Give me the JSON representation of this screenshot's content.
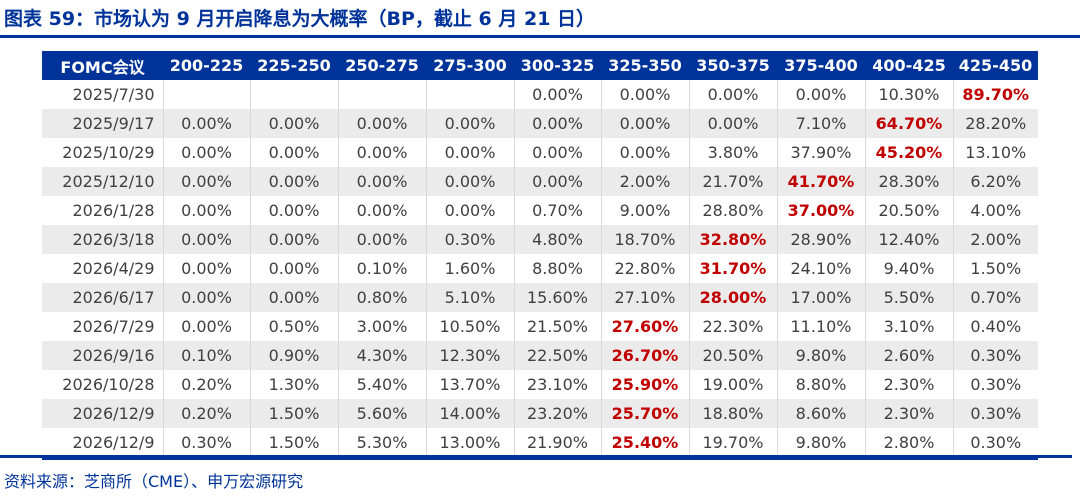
{
  "title": "图表 59：市场认为 9 月开启降息为大概率（BP，截止 6 月 21 日）",
  "colors": {
    "brand_blue": "#003399",
    "highlight_red": "#c00000",
    "text_gray": "#404040",
    "row_alt": "#ebebeb"
  },
  "table": {
    "headers": [
      "FOMC会议",
      "200-225",
      "225-250",
      "250-275",
      "275-300",
      "300-325",
      "325-350",
      "350-375",
      "375-400",
      "400-425",
      "425-450"
    ],
    "rows": [
      {
        "date": "2025/7/30",
        "values": [
          "",
          "",
          "",
          "",
          "0.00%",
          "0.00%",
          "0.00%",
          "0.00%",
          "10.30%",
          "89.70%"
        ],
        "highlight_index": 9
      },
      {
        "date": "2025/9/17",
        "values": [
          "0.00%",
          "0.00%",
          "0.00%",
          "0.00%",
          "0.00%",
          "0.00%",
          "0.00%",
          "7.10%",
          "64.70%",
          "28.20%"
        ],
        "highlight_index": 8
      },
      {
        "date": "2025/10/29",
        "values": [
          "0.00%",
          "0.00%",
          "0.00%",
          "0.00%",
          "0.00%",
          "0.00%",
          "3.80%",
          "37.90%",
          "45.20%",
          "13.10%"
        ],
        "highlight_index": 8
      },
      {
        "date": "2025/12/10",
        "values": [
          "0.00%",
          "0.00%",
          "0.00%",
          "0.00%",
          "0.00%",
          "2.00%",
          "21.70%",
          "41.70%",
          "28.30%",
          "6.20%"
        ],
        "highlight_index": 7
      },
      {
        "date": "2026/1/28",
        "values": [
          "0.00%",
          "0.00%",
          "0.00%",
          "0.00%",
          "0.70%",
          "9.00%",
          "28.80%",
          "37.00%",
          "20.50%",
          "4.00%"
        ],
        "highlight_index": 7
      },
      {
        "date": "2026/3/18",
        "values": [
          "0.00%",
          "0.00%",
          "0.00%",
          "0.30%",
          "4.80%",
          "18.70%",
          "32.80%",
          "28.90%",
          "12.40%",
          "2.00%"
        ],
        "highlight_index": 6
      },
      {
        "date": "2026/4/29",
        "values": [
          "0.00%",
          "0.00%",
          "0.10%",
          "1.60%",
          "8.80%",
          "22.80%",
          "31.70%",
          "24.10%",
          "9.40%",
          "1.50%"
        ],
        "highlight_index": 6
      },
      {
        "date": "2026/6/17",
        "values": [
          "0.00%",
          "0.00%",
          "0.80%",
          "5.10%",
          "15.60%",
          "27.10%",
          "28.00%",
          "17.00%",
          "5.50%",
          "0.70%"
        ],
        "highlight_index": 6
      },
      {
        "date": "2026/7/29",
        "values": [
          "0.00%",
          "0.50%",
          "3.00%",
          "10.50%",
          "21.50%",
          "27.60%",
          "22.30%",
          "11.10%",
          "3.10%",
          "0.40%"
        ],
        "highlight_index": 5
      },
      {
        "date": "2026/9/16",
        "values": [
          "0.10%",
          "0.90%",
          "4.30%",
          "12.30%",
          "22.50%",
          "26.70%",
          "20.50%",
          "9.80%",
          "2.60%",
          "0.30%"
        ],
        "highlight_index": 5
      },
      {
        "date": "2026/10/28",
        "values": [
          "0.20%",
          "1.30%",
          "5.40%",
          "13.70%",
          "23.10%",
          "25.90%",
          "19.00%",
          "8.80%",
          "2.30%",
          "0.30%"
        ],
        "highlight_index": 5
      },
      {
        "date": "2026/12/9",
        "values": [
          "0.20%",
          "1.50%",
          "5.60%",
          "14.00%",
          "23.20%",
          "25.70%",
          "18.80%",
          "8.60%",
          "2.30%",
          "0.30%"
        ],
        "highlight_index": 5
      },
      {
        "date": "2026/12/9",
        "values": [
          "0.30%",
          "1.50%",
          "5.30%",
          "13.00%",
          "21.90%",
          "25.40%",
          "19.70%",
          "9.80%",
          "2.80%",
          "0.30%"
        ],
        "highlight_index": 5
      }
    ]
  },
  "source": "资料来源：芝商所（CME）、申万宏源研究"
}
